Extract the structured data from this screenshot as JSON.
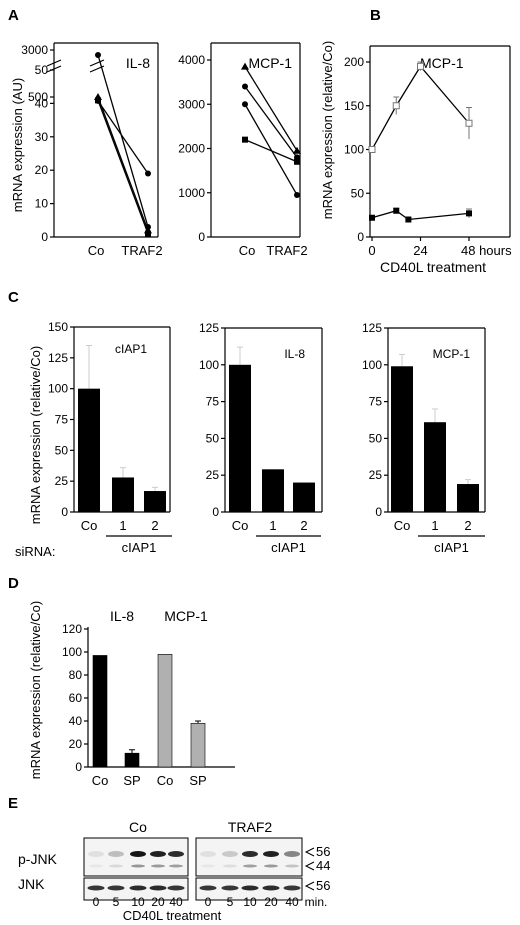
{
  "panel_letters": [
    "A",
    "B",
    "C",
    "D",
    "E"
  ],
  "chart_data": [
    {
      "panel": "A",
      "type": "line",
      "title": "IL-8",
      "ylabel": "mRNA expression (AU)",
      "categories": [
        "Co",
        "TRAF2"
      ],
      "y_ticks_lower": [
        "0",
        "10",
        "20",
        "30",
        "40",
        "50",
        "500"
      ],
      "y_ticks_upper": [
        "3000"
      ],
      "axis_break": true,
      "series": [
        {
          "marker": "triangle",
          "values": [
            500,
            2
          ]
        },
        {
          "marker": "circle",
          "values": [
            2950,
            3
          ]
        },
        {
          "marker": "square",
          "values": [
            365,
            1
          ]
        },
        {
          "marker": "circle",
          "values": [
            345,
            19
          ]
        }
      ]
    },
    {
      "panel": "A",
      "type": "line",
      "title": "MCP-1",
      "categories": [
        "Co",
        "TRAF2"
      ],
      "y_ticks": [
        "0",
        "1000",
        "2000",
        "3000",
        "4000"
      ],
      "ylim": [
        0,
        4000
      ],
      "series": [
        {
          "marker": "triangle",
          "values": [
            3850,
            1950
          ]
        },
        {
          "marker": "circle",
          "values": [
            3400,
            1800
          ]
        },
        {
          "marker": "circle",
          "values": [
            3000,
            950
          ]
        },
        {
          "marker": "square",
          "values": [
            2200,
            1700
          ]
        }
      ]
    },
    {
      "panel": "B",
      "type": "line",
      "title": "MCP-1",
      "ylabel": "mRNA expression (relative/Co)",
      "xlabel": "CD40L treatment",
      "x_ticks": [
        "0",
        "24",
        "48 hours"
      ],
      "y_ticks": [
        "0",
        "50",
        "100",
        "150",
        "200"
      ],
      "ylim": [
        0,
        215
      ],
      "xlim": [
        0,
        48
      ],
      "series": [
        {
          "marker": "open-square",
          "x": [
            0,
            12,
            24,
            48
          ],
          "values": [
            100,
            150,
            195,
            130
          ],
          "errors": [
            3,
            10,
            5,
            18
          ]
        },
        {
          "marker": "filled-square",
          "x": [
            0,
            12,
            18,
            48
          ],
          "values": [
            22,
            30,
            20,
            27
          ],
          "errors": [
            2,
            3,
            2,
            5
          ]
        }
      ]
    },
    {
      "panel": "C",
      "type": "bar",
      "title": "cIAP1",
      "ylabel": "mRNA expression (relative/Co)",
      "categories": [
        "Co",
        "1",
        "2"
      ],
      "group_label": "cIAP1",
      "row_label": "siRNA:",
      "y_ticks": [
        "0",
        "25",
        "50",
        "75",
        "100",
        "125",
        "150"
      ],
      "ylim": [
        0,
        150
      ],
      "values": [
        100,
        28,
        17
      ],
      "errors": [
        35,
        8,
        3
      ]
    },
    {
      "panel": "C",
      "type": "bar",
      "title": "IL-8",
      "categories": [
        "Co",
        "1",
        "2"
      ],
      "group_label": "cIAP1",
      "y_ticks": [
        "0",
        "25",
        "50",
        "75",
        "100",
        "125"
      ],
      "ylim": [
        0,
        125
      ],
      "values": [
        100,
        29,
        20
      ],
      "errors": [
        12,
        0,
        0
      ]
    },
    {
      "panel": "C",
      "type": "bar",
      "title": "MCP-1",
      "categories": [
        "Co",
        "1",
        "2"
      ],
      "group_label": "cIAP1",
      "y_ticks": [
        "0",
        "25",
        "50",
        "75",
        "100",
        "125"
      ],
      "ylim": [
        0,
        125
      ],
      "values": [
        99,
        61,
        19
      ],
      "errors": [
        8,
        9,
        3
      ]
    },
    {
      "panel": "D",
      "type": "bar",
      "ylabel": "mRNA expression (relative/Co)",
      "group_titles": [
        "IL-8",
        "MCP-1"
      ],
      "categories": [
        "Co",
        "SP",
        "Co",
        "SP"
      ],
      "y_ticks": [
        "0",
        "20",
        "40",
        "60",
        "80",
        "100",
        "120"
      ],
      "ylim": [
        0,
        125
      ],
      "values": [
        97,
        12,
        98,
        38
      ],
      "errors": [
        0,
        3,
        0,
        2
      ],
      "colors": [
        "#000000",
        "#000000",
        "#b0b0b0",
        "#b0b0b0"
      ]
    }
  ],
  "blot": {
    "group_titles": [
      "Co",
      "TRAF2"
    ],
    "row_labels": [
      "p-JNK",
      "JNK"
    ],
    "markers_pjnk": [
      "56",
      "44"
    ],
    "markers_jnk": [
      "56"
    ],
    "lanes_left": [
      "0",
      "5",
      "10",
      "20",
      "40"
    ],
    "lanes_right": [
      "0",
      "5",
      "10",
      "20",
      "40",
      "min."
    ],
    "xlabel": "CD40L treatment",
    "pjnk_left": [
      0.05,
      0.2,
      0.95,
      0.9,
      0.85
    ],
    "pjnk_right": [
      0.05,
      0.15,
      0.85,
      0.9,
      0.45
    ],
    "jnk_left": [
      0.8,
      0.8,
      0.85,
      0.85,
      0.8
    ],
    "jnk_right": [
      0.8,
      0.8,
      0.85,
      0.85,
      0.8
    ]
  }
}
